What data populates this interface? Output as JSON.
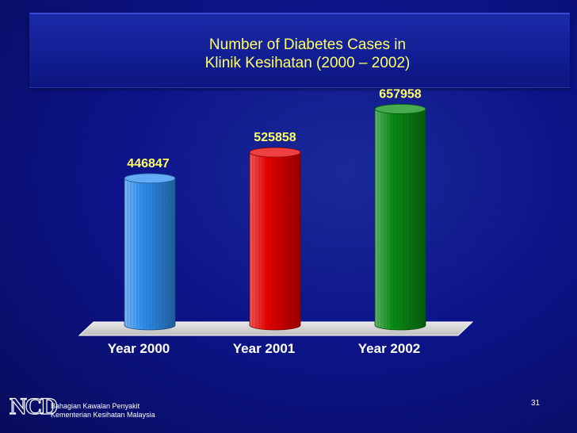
{
  "slide": {
    "title_line1": "Number of Diabetes Cases in",
    "title_line2": "Klinik Kesihatan (2000 – 2002)",
    "page_number": "31",
    "logo_text": "NCD",
    "department_line1": "Bahagian Kawalan Penyakit",
    "department_line2": "Kementerian Kesihatan Malaysia"
  },
  "colors": {
    "background": "#0d148a",
    "title_text": "#ffff66",
    "data_label": "#ffff66",
    "axis_text": "#ffffff",
    "floor": "#ffffff"
  },
  "chart_data": {
    "type": "bar",
    "title": "Number of Diabetes Cases in Klinik Kesihatan (2000 – 2002)",
    "categories": [
      "Year 2000",
      "Year 2001",
      "Year 2002"
    ],
    "values": [
      446847,
      525858,
      657958
    ],
    "data_labels": [
      "446847",
      "525858",
      "657958"
    ],
    "bar_colors": [
      "#2f8ff0",
      "#e80000",
      "#0a8c16"
    ],
    "xlabel": "",
    "ylabel": "",
    "ylim": [
      0,
      700000
    ],
    "grid": false,
    "legend": "none",
    "style": "3d-cylinder"
  }
}
